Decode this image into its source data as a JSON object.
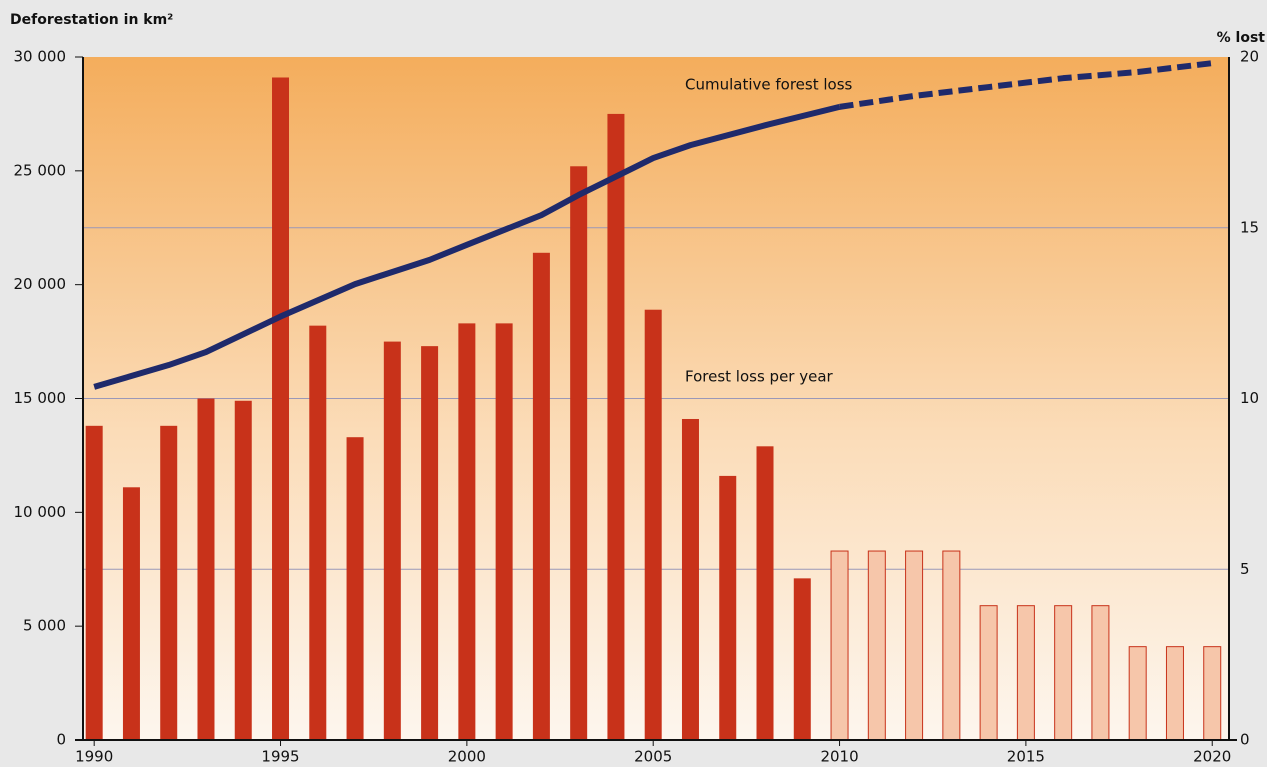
{
  "chart_data": {
    "type": "bar_line",
    "y_label": "Deforestation in km²",
    "y2_label": "% lost",
    "xlim": [
      1989.7,
      2020.45
    ],
    "xticks": [
      1990,
      1995,
      2000,
      2005,
      2010,
      2015,
      2020
    ],
    "ylim": [
      0,
      30000
    ],
    "yticks": [
      0,
      {
        "value": 5000,
        "label": "5 000"
      },
      {
        "value": 10000,
        "label": "10 000"
      },
      {
        "value": 15000,
        "label": "15 000"
      },
      {
        "value": 20000,
        "label": "20 000"
      },
      {
        "value": 25000,
        "label": "25 000"
      },
      {
        "value": 30000,
        "label": "30 000"
      }
    ],
    "y2lim": [
      0,
      20
    ],
    "y2ticks": [
      0,
      5,
      10,
      15,
      20
    ],
    "grid": true,
    "projection_start": 2010,
    "series": [
      {
        "name": "Forest loss per year",
        "type": "bar",
        "color": "#c8321a",
        "projected_color": "#f6c6aa",
        "x": [
          1990,
          1991,
          1992,
          1993,
          1994,
          1995,
          1996,
          1997,
          1998,
          1999,
          2000,
          2001,
          2002,
          2003,
          2004,
          2005,
          2006,
          2007,
          2008,
          2009,
          2010,
          2011,
          2012,
          2013,
          2014,
          2015,
          2016,
          2017,
          2018,
          2019,
          2020
        ],
        "values": [
          13800,
          11100,
          13800,
          15000,
          14900,
          29100,
          18200,
          13300,
          17500,
          17300,
          18300,
          18300,
          21400,
          25200,
          27500,
          18900,
          14100,
          11600,
          12900,
          7100,
          8300,
          8300,
          8300,
          8300,
          5900,
          5900,
          5900,
          5900,
          4100,
          4100,
          4100
        ]
      },
      {
        "name": "Cumulative forest loss",
        "type": "line",
        "axis": "y2",
        "color": "#1f2a6b",
        "x": [
          1990,
          1992,
          1993,
          1995,
          1997,
          1999,
          2000,
          2002,
          2003,
          2004,
          2005,
          2006,
          2008,
          2010,
          2012,
          2014,
          2016,
          2018,
          2020
        ],
        "values": [
          10.34,
          10.98,
          11.36,
          12.4,
          13.35,
          14.06,
          14.5,
          15.37,
          15.96,
          16.5,
          17.04,
          17.42,
          18.0,
          18.54,
          18.86,
          19.12,
          19.38,
          19.56,
          19.82
        ]
      }
    ]
  }
}
